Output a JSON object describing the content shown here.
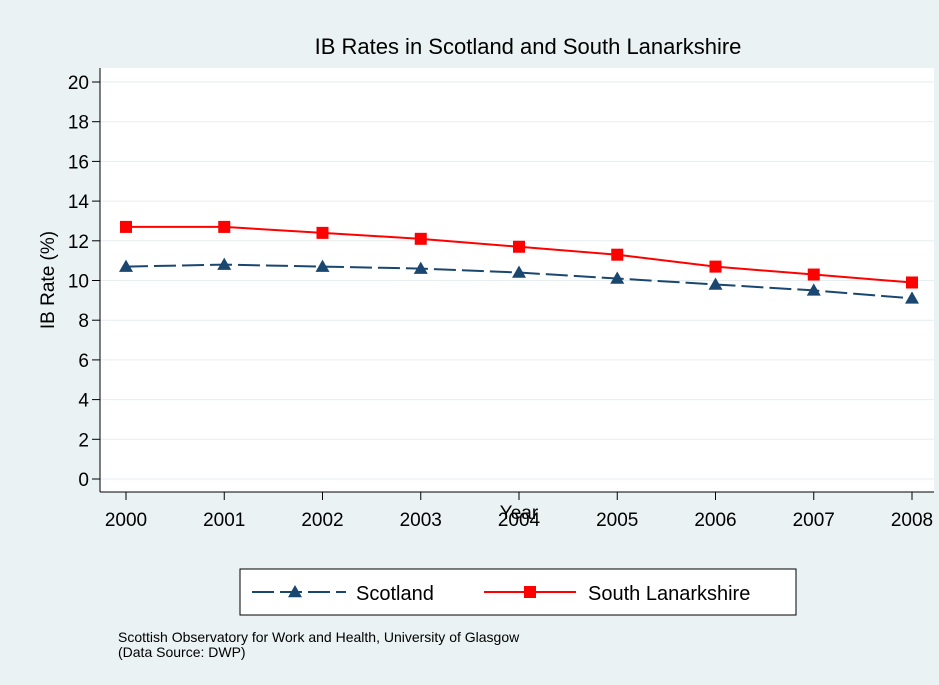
{
  "colors": {
    "background": "#eaf2f3",
    "plot_background": "#ffffff",
    "scotland": "#1a476f",
    "south_lanarkshire": "#ff0000",
    "title": "#1a476f"
  },
  "chart_data": {
    "type": "line",
    "title": "IB Rates in Scotland and South Lanarkshire",
    "xlabel": "Year",
    "ylabel": "IB Rate (%)",
    "x": [
      2000,
      2001,
      2002,
      2003,
      2004,
      2005,
      2006,
      2007,
      2008
    ],
    "xticks": [
      "2000",
      "2001",
      "2002",
      "2003",
      "2004",
      "2005",
      "2006",
      "2007",
      "2008"
    ],
    "yticks": [
      "0",
      "2",
      "4",
      "6",
      "8",
      "10",
      "12",
      "14",
      "16",
      "18",
      "20"
    ],
    "ylim": [
      0,
      20
    ],
    "grid": true,
    "legend_position": "bottom",
    "series": [
      {
        "name": "Scotland",
        "values": [
          10.7,
          10.8,
          10.7,
          10.6,
          10.4,
          10.1,
          9.8,
          9.5,
          9.1
        ],
        "line_style": "dashed",
        "marker": "triangle",
        "color": "#1a476f"
      },
      {
        "name": "South Lanarkshire",
        "values": [
          12.7,
          12.7,
          12.4,
          12.1,
          11.7,
          11.3,
          10.7,
          10.3,
          9.9
        ],
        "line_style": "solid",
        "marker": "square",
        "color": "#ff0000"
      }
    ]
  },
  "footnote": {
    "line1": "Scottish Observatory for Work and Health, University of Glasgow",
    "line2": "(Data Source: DWP)"
  }
}
